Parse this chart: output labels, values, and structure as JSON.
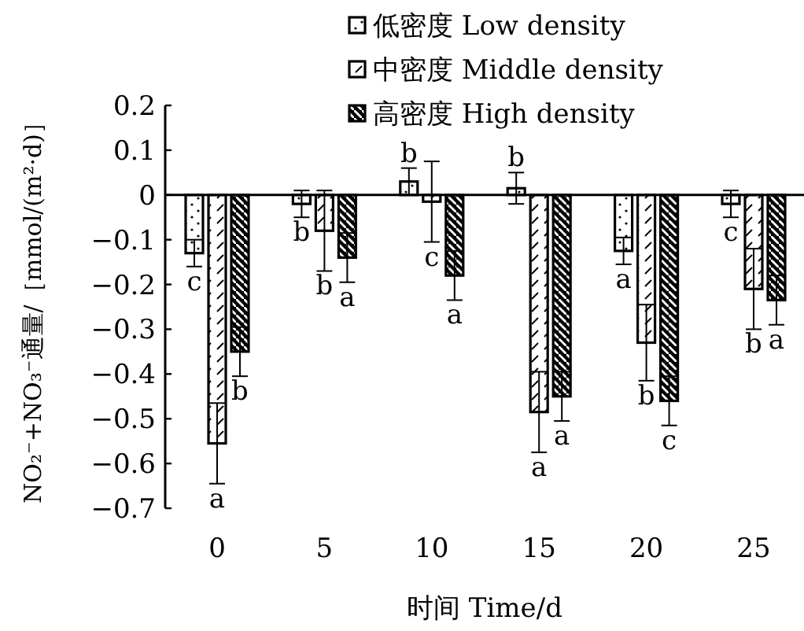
{
  "chart_data": {
    "type": "bar",
    "xlabel": "时间 Time/d",
    "ylabel": "NO₂⁻+NO₃⁻通量/［mmol/(m²·d)］",
    "categories": [
      "0",
      "5",
      "10",
      "15",
      "20",
      "25"
    ],
    "ylim": [
      -0.7,
      0.2
    ],
    "yticks": [
      {
        "value": 0.2,
        "label": "0.2"
      },
      {
        "value": 0.1,
        "label": "0.1"
      },
      {
        "value": 0,
        "label": "0"
      },
      {
        "value": -0.1,
        "label": "−0.1"
      },
      {
        "value": -0.2,
        "label": "−0.2"
      },
      {
        "value": -0.3,
        "label": "−0.3"
      },
      {
        "value": -0.4,
        "label": "−0.4"
      },
      {
        "value": -0.5,
        "label": "−0.5"
      },
      {
        "value": -0.6,
        "label": "−0.6"
      },
      {
        "value": -0.7,
        "label": "−0.7"
      }
    ],
    "legend": "top right",
    "series": [
      {
        "name": "低密度 Low density",
        "color": "#000000",
        "values": [
          -0.13,
          -0.02,
          0.03,
          0.015,
          -0.125,
          -0.02
        ],
        "errors": [
          0.03,
          0.03,
          0.03,
          0.035,
          0.03,
          0.03
        ]
      },
      {
        "name": "中密度 Middle density",
        "color": "#000000",
        "values": [
          -0.555,
          -0.08,
          -0.015,
          -0.485,
          -0.33,
          -0.21
        ],
        "errors": [
          0.09,
          0.09,
          0.09,
          0.09,
          0.085,
          0.09
        ]
      },
      {
        "name": "高密度 High density",
        "color": "#000000",
        "values": [
          -0.35,
          -0.14,
          -0.18,
          -0.45,
          -0.46,
          -0.235
        ],
        "errors": [
          0.055,
          0.055,
          0.055,
          0.055,
          0.055,
          0.055
        ]
      }
    ],
    "annotations": [
      "c",
      "b",
      "b",
      "b",
      "a",
      "c",
      "a",
      "b",
      "c",
      "a",
      "b",
      "b",
      "b",
      "a",
      "a",
      "a",
      "c",
      "a"
    ]
  }
}
